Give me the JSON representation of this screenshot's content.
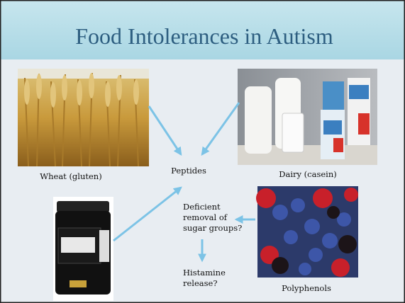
{
  "title": "Food Intolerances in Autism",
  "nodes": [
    {
      "label": "Wheat (gluten)"
    },
    {
      "label": "Dairy (casein)"
    },
    {
      "label": "Peptides"
    },
    {
      "label": "Polyphenols"
    },
    {
      "lines": [
        "Deficient",
        "removal of",
        "sugar groups?"
      ]
    },
    {
      "lines": [
        "Histamine",
        "release?"
      ]
    }
  ]
}
